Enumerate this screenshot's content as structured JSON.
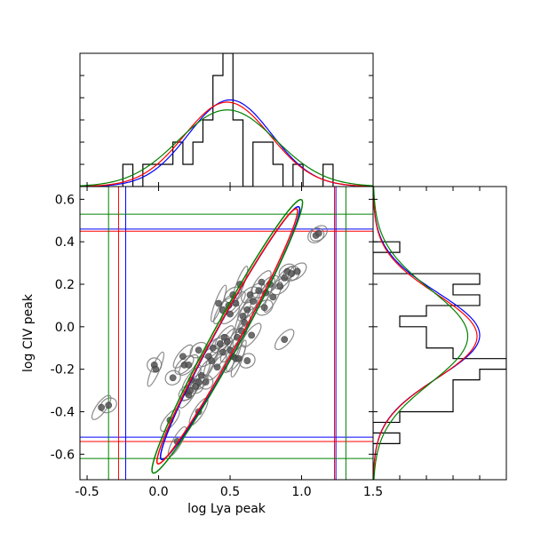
{
  "chart_data": {
    "type": "scatter",
    "title": "",
    "xlabel": "log Lya peak",
    "ylabel": "log CIV peak",
    "xlim": [
      -0.55,
      1.5
    ],
    "ylim": [
      -0.72,
      0.66
    ],
    "xticks": [
      -0.5,
      0.0,
      0.5,
      1.0,
      1.5
    ],
    "yticks": [
      -0.6,
      -0.4,
      -0.2,
      0.0,
      0.2,
      0.4,
      0.6
    ],
    "xtick_labels": [
      "-0.5",
      "0.0",
      "0.5",
      "1.0",
      "1.5"
    ],
    "ytick_labels": [
      "-0.6",
      "-0.4",
      "-0.2",
      "0.0",
      "0.2",
      "0.4",
      "0.6"
    ],
    "grid": false,
    "legend": "none",
    "points": [
      {
        "x": -0.03,
        "y": -0.18
      },
      {
        "x": -0.02,
        "y": -0.2
      },
      {
        "x": 0.1,
        "y": -0.24
      },
      {
        "x": 0.17,
        "y": -0.14
      },
      {
        "x": 0.18,
        "y": -0.18
      },
      {
        "x": 0.21,
        "y": -0.18
      },
      {
        "x": 0.23,
        "y": -0.25
      },
      {
        "x": 0.2,
        "y": -0.31
      },
      {
        "x": 0.21,
        "y": -0.32
      },
      {
        "x": 0.22,
        "y": -0.3
      },
      {
        "x": 0.26,
        "y": -0.28
      },
      {
        "x": 0.28,
        "y": -0.26
      },
      {
        "x": 0.3,
        "y": -0.23
      },
      {
        "x": 0.33,
        "y": -0.26
      },
      {
        "x": 0.28,
        "y": -0.11
      },
      {
        "x": 0.35,
        "y": -0.14
      },
      {
        "x": 0.37,
        "y": -0.16
      },
      {
        "x": 0.38,
        "y": -0.1
      },
      {
        "x": 0.41,
        "y": -0.19
      },
      {
        "x": 0.43,
        "y": -0.08
      },
      {
        "x": 0.45,
        "y": -0.12
      },
      {
        "x": 0.46,
        "y": -0.05
      },
      {
        "x": 0.48,
        "y": -0.07
      },
      {
        "x": 0.5,
        "y": -0.11
      },
      {
        "x": 0.52,
        "y": -0.14
      },
      {
        "x": 0.54,
        "y": -0.15
      },
      {
        "x": 0.55,
        "y": -0.05
      },
      {
        "x": 0.56,
        "y": -0.15
      },
      {
        "x": 0.58,
        "y": -0.02
      },
      {
        "x": 0.65,
        "y": -0.04
      },
      {
        "x": 0.42,
        "y": 0.11
      },
      {
        "x": 0.45,
        "y": 0.08
      },
      {
        "x": 0.49,
        "y": 0.1
      },
      {
        "x": 0.5,
        "y": 0.06
      },
      {
        "x": 0.52,
        "y": 0.15
      },
      {
        "x": 0.54,
        "y": 0.11
      },
      {
        "x": 0.57,
        "y": 0.2
      },
      {
        "x": 0.59,
        "y": 0.05
      },
      {
        "x": 0.62,
        "y": 0.08
      },
      {
        "x": 0.64,
        "y": 0.15
      },
      {
        "x": 0.66,
        "y": 0.12
      },
      {
        "x": 0.7,
        "y": 0.17
      },
      {
        "x": 0.72,
        "y": 0.21
      },
      {
        "x": 0.75,
        "y": 0.16
      },
      {
        "x": 0.78,
        "y": 0.2
      },
      {
        "x": 0.8,
        "y": 0.14
      },
      {
        "x": 0.85,
        "y": 0.19
      },
      {
        "x": 0.88,
        "y": 0.23
      },
      {
        "x": 0.9,
        "y": 0.26
      },
      {
        "x": 0.93,
        "y": 0.25
      },
      {
        "x": 0.97,
        "y": 0.26
      },
      {
        "x": 1.1,
        "y": 0.43
      },
      {
        "x": 1.12,
        "y": 0.44
      },
      {
        "x": 0.88,
        "y": -0.06
      },
      {
        "x": -0.4,
        "y": -0.38
      },
      {
        "x": -0.35,
        "y": -0.37
      },
      {
        "x": 0.08,
        "y": -0.44
      },
      {
        "x": 0.13,
        "y": -0.54
      },
      {
        "x": 0.28,
        "y": -0.4
      },
      {
        "x": 0.6,
        "y": 0.02
      },
      {
        "x": 0.74,
        "y": 0.09
      },
      {
        "x": 0.62,
        "y": -0.16
      }
    ],
    "fit_lines": [
      {
        "color": "#0000ff",
        "x": [
          -0.23,
          1.24
        ],
        "y": [
          -0.52,
          0.46
        ]
      },
      {
        "color": "#ff0000",
        "x": [
          -0.28,
          1.23
        ],
        "y": [
          -0.54,
          0.45
        ]
      },
      {
        "color": "#008000",
        "x": [
          -0.35,
          1.31
        ],
        "y": [
          -0.62,
          0.53
        ]
      }
    ],
    "contours": [
      {
        "color": "#0000ff",
        "cx": 0.5,
        "cy": -0.03,
        "a": 0.98,
        "b": 0.1,
        "angle_deg": 37
      },
      {
        "color": "#ff0000",
        "cx": 0.48,
        "cy": -0.045,
        "a": 0.99,
        "b": 0.095,
        "angle_deg": 37
      },
      {
        "color": "#008000",
        "cx": 0.48,
        "cy": -0.045,
        "a": 1.06,
        "b": 0.11,
        "angle_deg": 37
      }
    ],
    "histogram_x": {
      "bins": [
        -0.25,
        -0.18,
        -0.11,
        -0.04,
        0.03,
        0.1,
        0.17,
        0.24,
        0.31,
        0.38,
        0.45,
        0.52,
        0.59,
        0.66,
        0.73,
        0.8,
        0.87,
        0.94,
        1.01,
        1.08,
        1.15,
        1.22
      ],
      "counts": [
        1,
        0,
        1,
        1,
        1,
        2,
        1,
        2,
        3,
        5,
        6,
        3,
        0,
        2,
        2,
        1,
        0,
        1,
        0,
        0,
        1
      ]
    },
    "histogram_y": {
      "bins": [
        -0.6,
        -0.55,
        -0.5,
        -0.45,
        -0.4,
        -0.35,
        -0.3,
        -0.25,
        -0.2,
        -0.15,
        -0.1,
        -0.05,
        0.0,
        0.05,
        0.1,
        0.15,
        0.2,
        0.25,
        0.3,
        0.35,
        0.4,
        0.45
      ],
      "counts": [
        0,
        1,
        0,
        1,
        3,
        3,
        3,
        4,
        5,
        3,
        2,
        2,
        1,
        2,
        4,
        3,
        4,
        0,
        0,
        1,
        0
      ]
    },
    "marginal_gaussians": [
      {
        "color": "#0000ff",
        "mean_x": 0.5,
        "sigma_x": 0.29,
        "mean_y": -0.04,
        "sigma_y": 0.2
      },
      {
        "color": "#ff0000",
        "mean_x": 0.48,
        "sigma_x": 0.3,
        "mean_y": -0.045,
        "sigma_y": 0.2
      },
      {
        "color": "#008000",
        "mean_x": 0.48,
        "sigma_x": 0.34,
        "mean_y": -0.045,
        "sigma_y": 0.22
      }
    ]
  }
}
